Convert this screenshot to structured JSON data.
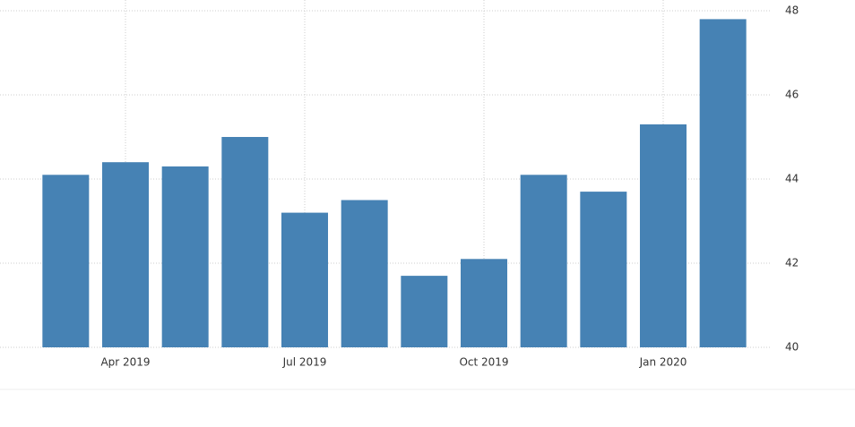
{
  "chart_data": {
    "type": "bar",
    "categories": [
      null,
      "Apr 2019",
      null,
      null,
      "Jul 2019",
      null,
      null,
      "Oct 2019",
      null,
      null,
      "Jan 2020",
      null
    ],
    "values": [
      44.1,
      44.4,
      44.3,
      45.0,
      43.2,
      43.5,
      41.7,
      42.1,
      44.1,
      43.7,
      45.3,
      47.8
    ],
    "color": "#4682b4",
    "ylim": [
      40,
      48
    ],
    "yticks": [
      40,
      42,
      44,
      46,
      48
    ],
    "grid": true
  }
}
